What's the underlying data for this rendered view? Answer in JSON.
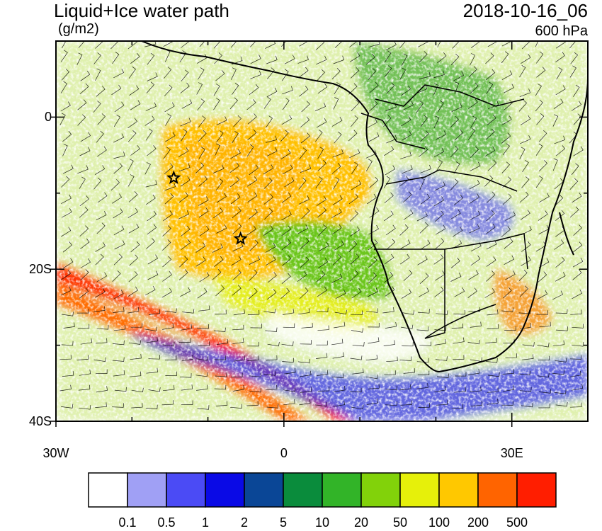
{
  "header": {
    "title": "Liquid+Ice water path",
    "units": "(g/m2)",
    "datetime": "2018-10-16_06",
    "level": "600 hPa"
  },
  "axes": {
    "lon_labels": [
      {
        "text": "30W",
        "lon": -30
      },
      {
        "text": "0",
        "lon": 0
      },
      {
        "text": "30E",
        "lon": 30
      }
    ],
    "lat_labels": [
      {
        "text": "0",
        "lat": 0
      },
      {
        "text": "20S",
        "lat": -20
      },
      {
        "text": "40S",
        "lat": -40
      }
    ],
    "lon_range": [
      -30,
      40
    ],
    "lat_range": [
      -40,
      10
    ]
  },
  "markers": [
    {
      "name": "star-marker",
      "lon": -14.5,
      "lat": -8
    },
    {
      "name": "star-marker",
      "lon": -5.7,
      "lat": -16
    }
  ],
  "colorbar": {
    "colors": [
      "#ffffff",
      "#a0a0f5",
      "#4b4bf5",
      "#0a0ae6",
      "#0a4696",
      "#0a8c3c",
      "#32b428",
      "#82d20a",
      "#e6f00a",
      "#ffc800",
      "#ff6400",
      "#ff1e00"
    ],
    "labels": [
      "0.1",
      "0.5",
      "1",
      "2",
      "5",
      "10",
      "20",
      "50",
      "100",
      "200",
      "500"
    ]
  },
  "colors": {
    "land_outline": "#000000",
    "wind_barb": "#000000"
  }
}
